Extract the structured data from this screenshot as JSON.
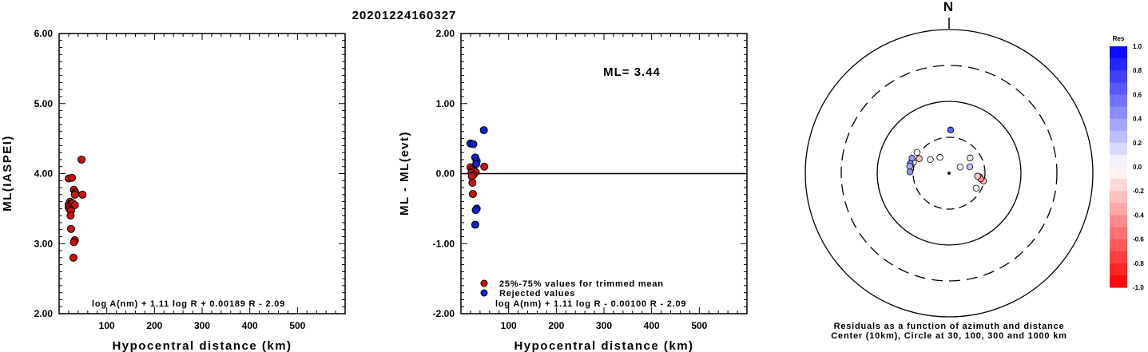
{
  "title": "20201224160327",
  "colors": {
    "used": "#cc1111",
    "rejected": "#1122cc",
    "pos_res": "#0000ff",
    "neg_res": "#ff0000"
  },
  "chart_data": [
    {
      "type": "scatter",
      "name": "ml-vs-distance",
      "xlabel": "Hypocentral distance (km)",
      "ylabel": "ML(IASPEI)",
      "xlim": [
        0,
        600
      ],
      "ylim": [
        2.0,
        6.0
      ],
      "xticks": [
        "100",
        "200",
        "300",
        "400",
        "500"
      ],
      "xtick_values": [
        100,
        200,
        300,
        400,
        500
      ],
      "yticks": [
        "2.00",
        "3.00",
        "4.00",
        "5.00",
        "6.00"
      ],
      "ytick_values": [
        2,
        3,
        4,
        5,
        6
      ],
      "formula": "log A(nm) + 1.11 log R + 0.00189 R - 2.09",
      "points": [
        {
          "x": 47,
          "y": 4.2
        },
        {
          "x": 20,
          "y": 3.93
        },
        {
          "x": 27,
          "y": 3.94
        },
        {
          "x": 31,
          "y": 3.77
        },
        {
          "x": 34,
          "y": 3.73
        },
        {
          "x": 33,
          "y": 3.7
        },
        {
          "x": 49,
          "y": 3.7
        },
        {
          "x": 23,
          "y": 3.6
        },
        {
          "x": 20,
          "y": 3.56
        },
        {
          "x": 26,
          "y": 3.57
        },
        {
          "x": 28,
          "y": 3.58
        },
        {
          "x": 33,
          "y": 3.55
        },
        {
          "x": 20,
          "y": 3.52
        },
        {
          "x": 22,
          "y": 3.49
        },
        {
          "x": 25,
          "y": 3.47
        },
        {
          "x": 24,
          "y": 3.4
        },
        {
          "x": 25,
          "y": 3.21
        },
        {
          "x": 33,
          "y": 3.05
        },
        {
          "x": 31,
          "y": 3.02
        },
        {
          "x": 30,
          "y": 2.8
        }
      ]
    },
    {
      "type": "scatter",
      "name": "residual-vs-distance",
      "xlabel": "Hypocentral distance (km)",
      "ylabel": "ML - ML(evt)",
      "xlim": [
        0,
        600
      ],
      "ylim": [
        -2.0,
        2.0
      ],
      "xticks": [
        "100",
        "200",
        "300",
        "400",
        "500"
      ],
      "xtick_values": [
        100,
        200,
        300,
        400,
        500
      ],
      "yticks": [
        "-2.00",
        "-1.00",
        "0.00",
        "1.00",
        "2.00"
      ],
      "ytick_values": [
        -2,
        -1,
        0,
        1,
        2
      ],
      "annotation": "ML= 3.44",
      "legend": [
        "25%-75% values for trimmed mean",
        "Rejected values"
      ],
      "formula": "log A(nm) + 1.11 log R - 0.00100 R - 2.09",
      "series": [
        {
          "name": "25%-75% values for trimmed mean",
          "points": [
            {
              "x": 49,
              "y": 0.1
            },
            {
              "x": 20,
              "y": 0.09
            },
            {
              "x": 24,
              "y": 0.06
            },
            {
              "x": 28,
              "y": 0.04
            },
            {
              "x": 31,
              "y": 0.02
            },
            {
              "x": 22,
              "y": 0.01
            },
            {
              "x": 26,
              "y": -0.02
            },
            {
              "x": 23,
              "y": -0.04
            },
            {
              "x": 24,
              "y": -0.13
            },
            {
              "x": 25,
              "y": -0.29
            }
          ]
        },
        {
          "name": "Rejected values",
          "points": [
            {
              "x": 48,
              "y": 0.62
            },
            {
              "x": 20,
              "y": 0.43
            },
            {
              "x": 26,
              "y": 0.42
            },
            {
              "x": 30,
              "y": 0.23
            },
            {
              "x": 33,
              "y": 0.18
            },
            {
              "x": 32,
              "y": 0.14
            },
            {
              "x": 33,
              "y": -0.5
            },
            {
              "x": 31,
              "y": -0.52
            },
            {
              "x": 30,
              "y": -0.73
            }
          ]
        }
      ]
    },
    {
      "type": "scatter",
      "name": "azimuth-distance-residual-map",
      "north_label": "N",
      "caption_line1": "Residuals as a function of azimuth and distance",
      "caption_line2": "Center (10km), Circle at 30, 100, 300 and 1000 km",
      "colorbar_title": "Res",
      "colorbar_labels": [
        "1.0",
        "0.8",
        "0.6",
        "0.4",
        "0.2",
        "0.0",
        "-0.2",
        "-0.4",
        "-0.6",
        "-0.8",
        "-1.0"
      ],
      "colorbar_values": [
        1.0,
        0.8,
        0.6,
        0.4,
        0.2,
        0.0,
        -0.2,
        -0.4,
        -0.6,
        -0.8,
        -1.0
      ],
      "stations": [
        {
          "az": 2,
          "dist": 40,
          "res": 0.62
        },
        {
          "az": 97,
          "dist": 27,
          "res": -0.4
        },
        {
          "az": 103,
          "dist": 31,
          "res": -0.3
        },
        {
          "az": 100,
          "dist": 28,
          "res": -0.45
        },
        {
          "az": 96,
          "dist": 25,
          "res": -0.2
        },
        {
          "az": 119,
          "dist": 27,
          "res": 0.05
        },
        {
          "az": 73,
          "dist": 20,
          "res": 0.25
        },
        {
          "az": 54,
          "dist": 23,
          "res": 0.04
        },
        {
          "az": 61,
          "dist": 15,
          "res": -0.02
        },
        {
          "az": 303,
          "dist": 34,
          "res": -0.02
        },
        {
          "az": 287,
          "dist": 33,
          "res": 0.05
        },
        {
          "az": 292,
          "dist": 36,
          "res": 0.4
        },
        {
          "az": 284,
          "dist": 36,
          "res": 0.5
        },
        {
          "az": 280,
          "dist": 36,
          "res": 0.35
        },
        {
          "az": 272,
          "dist": 35,
          "res": 0.45
        },
        {
          "az": 296,
          "dist": 29,
          "res": -0.25
        },
        {
          "az": 306,
          "dist": 21,
          "res": -0.05
        },
        {
          "az": 330,
          "dist": 18,
          "res": 0.02
        }
      ]
    }
  ]
}
